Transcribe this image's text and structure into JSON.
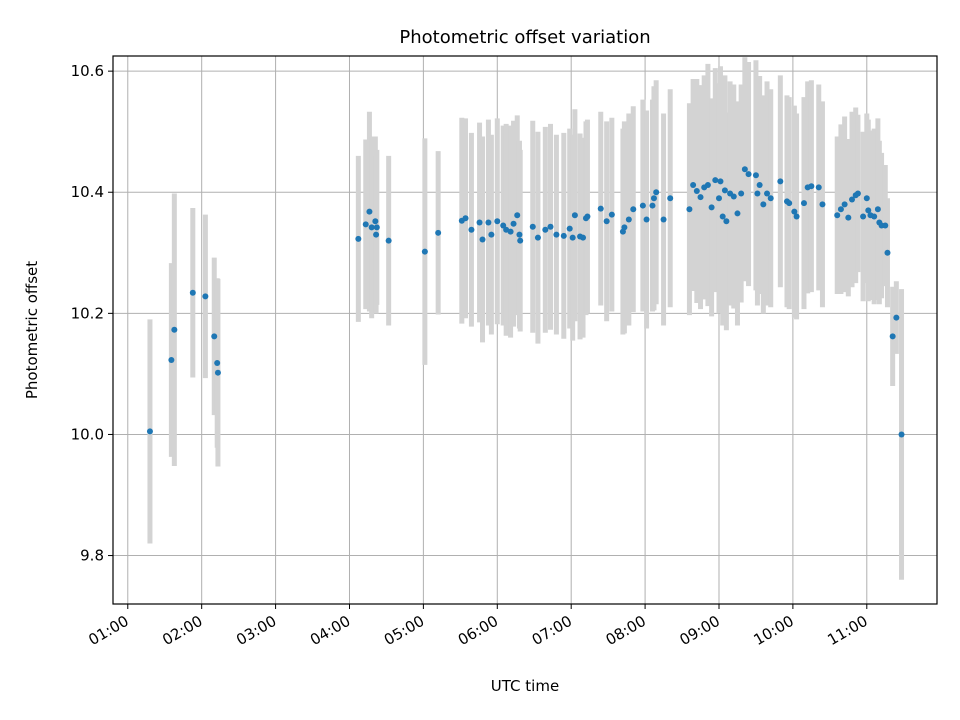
{
  "chart_data": {
    "type": "scatter",
    "title": "Photometric offset variation",
    "xlabel": "UTC time",
    "ylabel": "Photometric offset",
    "grid": true,
    "xlim": [
      0.8,
      11.95
    ],
    "ylim": [
      9.72,
      10.625
    ],
    "x_ticks": [
      1,
      2,
      3,
      4,
      5,
      6,
      7,
      8,
      9,
      10,
      11
    ],
    "x_tick_labels": [
      "01:00",
      "02:00",
      "03:00",
      "04:00",
      "05:00",
      "06:00",
      "07:00",
      "08:00",
      "09:00",
      "10:00",
      "11:00"
    ],
    "y_ticks": [
      9.8,
      10.0,
      10.2,
      10.4,
      10.6
    ],
    "y_tick_labels": [
      "9.8",
      "10.0",
      "10.2",
      "10.4",
      "10.6"
    ],
    "series": [
      {
        "name": "offset",
        "color": "#1f77b4",
        "errorbar_color": "#d3d3d3",
        "points": [
          [
            1.3,
            10.005,
            0.185
          ],
          [
            1.59,
            10.123,
            0.16
          ],
          [
            1.63,
            10.173,
            0.225
          ],
          [
            1.88,
            10.234,
            0.14
          ],
          [
            2.05,
            10.228,
            0.135
          ],
          [
            2.17,
            10.162,
            0.13
          ],
          [
            2.21,
            10.118,
            0.14
          ],
          [
            2.22,
            10.102,
            0.155
          ],
          [
            4.12,
            10.323,
            0.137
          ],
          [
            4.22,
            10.347,
            0.14
          ],
          [
            4.27,
            10.368,
            0.165
          ],
          [
            4.3,
            10.342,
            0.15
          ],
          [
            4.35,
            10.352,
            0.14
          ],
          [
            4.36,
            10.33,
            0.13
          ],
          [
            4.37,
            10.342,
            0.128
          ],
          [
            4.53,
            10.32,
            0.14
          ],
          [
            5.02,
            10.302,
            0.187
          ],
          [
            5.2,
            10.333,
            0.135
          ],
          [
            5.52,
            10.353,
            0.17
          ],
          [
            5.57,
            10.357,
            0.165
          ],
          [
            5.65,
            10.338,
            0.16
          ],
          [
            5.76,
            10.35,
            0.165
          ],
          [
            5.8,
            10.322,
            0.17
          ],
          [
            5.88,
            10.35,
            0.17
          ],
          [
            5.92,
            10.33,
            0.165
          ],
          [
            6.0,
            10.352,
            0.17
          ],
          [
            6.08,
            10.345,
            0.165
          ],
          [
            6.12,
            10.338,
            0.175
          ],
          [
            6.18,
            10.335,
            0.175
          ],
          [
            6.22,
            10.348,
            0.17
          ],
          [
            6.27,
            10.362,
            0.165
          ],
          [
            6.3,
            10.33,
            0.155
          ],
          [
            6.31,
            10.32,
            0.15
          ],
          [
            6.48,
            10.343,
            0.175
          ],
          [
            6.55,
            10.325,
            0.175
          ],
          [
            6.65,
            10.338,
            0.17
          ],
          [
            6.72,
            10.343,
            0.17
          ],
          [
            6.8,
            10.33,
            0.165
          ],
          [
            6.9,
            10.328,
            0.17
          ],
          [
            6.98,
            10.34,
            0.165
          ],
          [
            7.02,
            10.325,
            0.17
          ],
          [
            7.05,
            10.362,
            0.175
          ],
          [
            7.12,
            10.327,
            0.17
          ],
          [
            7.16,
            10.325,
            0.165
          ],
          [
            7.2,
            10.357,
            0.16
          ],
          [
            7.22,
            10.36,
            0.16
          ],
          [
            7.4,
            10.373,
            0.16
          ],
          [
            7.48,
            10.352,
            0.165
          ],
          [
            7.55,
            10.363,
            0.16
          ],
          [
            7.7,
            10.335,
            0.17
          ],
          [
            7.72,
            10.342,
            0.175
          ],
          [
            7.78,
            10.355,
            0.175
          ],
          [
            7.84,
            10.372,
            0.17
          ],
          [
            7.97,
            10.378,
            0.175
          ],
          [
            8.02,
            10.355,
            0.18
          ],
          [
            8.1,
            10.378,
            0.175
          ],
          [
            8.12,
            10.39,
            0.185
          ],
          [
            8.15,
            10.4,
            0.185
          ],
          [
            8.25,
            10.355,
            0.175
          ],
          [
            8.34,
            10.39,
            0.18
          ],
          [
            8.6,
            10.372,
            0.175
          ],
          [
            8.65,
            10.412,
            0.175
          ],
          [
            8.7,
            10.402,
            0.185
          ],
          [
            8.75,
            10.392,
            0.185
          ],
          [
            8.8,
            10.408,
            0.185
          ],
          [
            8.85,
            10.412,
            0.2
          ],
          [
            8.9,
            10.375,
            0.18
          ],
          [
            8.95,
            10.42,
            0.185
          ],
          [
            9.0,
            10.39,
            0.19
          ],
          [
            9.02,
            10.418,
            0.19
          ],
          [
            9.05,
            10.36,
            0.18
          ],
          [
            9.08,
            10.403,
            0.19
          ],
          [
            9.1,
            10.352,
            0.18
          ],
          [
            9.15,
            10.398,
            0.185
          ],
          [
            9.2,
            10.393,
            0.185
          ],
          [
            9.25,
            10.365,
            0.185
          ],
          [
            9.3,
            10.398,
            0.18
          ],
          [
            9.35,
            10.438,
            0.185
          ],
          [
            9.4,
            10.43,
            0.185
          ],
          [
            9.5,
            10.428,
            0.19
          ],
          [
            9.52,
            10.398,
            0.185
          ],
          [
            9.55,
            10.412,
            0.18
          ],
          [
            9.6,
            10.38,
            0.18
          ],
          [
            9.65,
            10.398,
            0.185
          ],
          [
            9.7,
            10.39,
            0.18
          ],
          [
            9.83,
            10.418,
            0.175
          ],
          [
            9.92,
            10.385,
            0.175
          ],
          [
            9.95,
            10.382,
            0.175
          ],
          [
            10.02,
            10.368,
            0.175
          ],
          [
            10.05,
            10.36,
            0.17
          ],
          [
            10.15,
            10.382,
            0.175
          ],
          [
            10.2,
            10.408,
            0.175
          ],
          [
            10.25,
            10.41,
            0.175
          ],
          [
            10.35,
            10.408,
            0.17
          ],
          [
            10.4,
            10.38,
            0.17
          ],
          [
            10.6,
            10.362,
            0.13
          ],
          [
            10.65,
            10.372,
            0.14
          ],
          [
            10.7,
            10.38,
            0.145
          ],
          [
            10.75,
            10.358,
            0.13
          ],
          [
            10.8,
            10.388,
            0.145
          ],
          [
            10.85,
            10.395,
            0.145
          ],
          [
            10.88,
            10.398,
            0.13
          ],
          [
            10.95,
            10.36,
            0.14
          ],
          [
            11.0,
            10.39,
            0.14
          ],
          [
            11.02,
            10.37,
            0.15
          ],
          [
            11.05,
            10.362,
            0.14
          ],
          [
            11.1,
            10.36,
            0.145
          ],
          [
            11.15,
            10.372,
            0.15
          ],
          [
            11.17,
            10.35,
            0.135
          ],
          [
            11.2,
            10.345,
            0.12
          ],
          [
            11.25,
            10.345,
            0.1
          ],
          [
            11.28,
            10.3,
            0.09
          ],
          [
            11.35,
            10.162,
            0.082
          ],
          [
            11.4,
            10.193,
            0.06
          ],
          [
            11.47,
            10.0,
            0.24
          ]
        ]
      }
    ]
  }
}
